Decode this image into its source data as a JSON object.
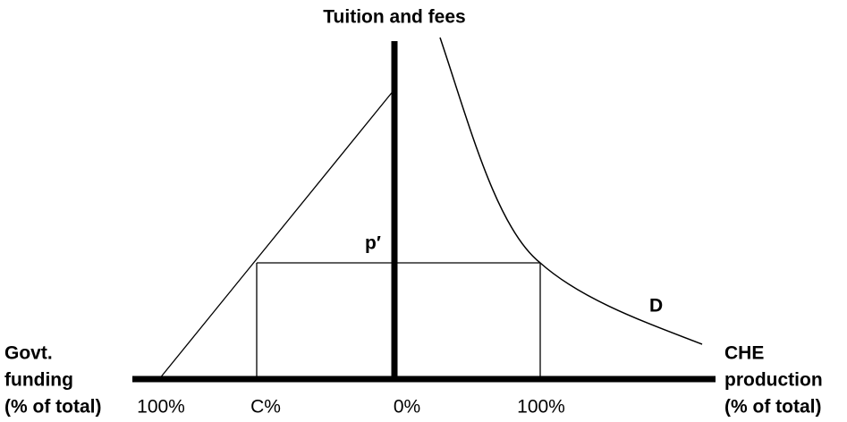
{
  "title": "Tuition and fees",
  "left_label": [
    "Govt.",
    "funding",
    "(% of total)"
  ],
  "right_label": [
    "CHE",
    "production",
    "(% of total)"
  ],
  "ticks": [
    "100%",
    "C%",
    "0%",
    "100%"
  ],
  "price_label": "p′",
  "curve_label": "D"
}
